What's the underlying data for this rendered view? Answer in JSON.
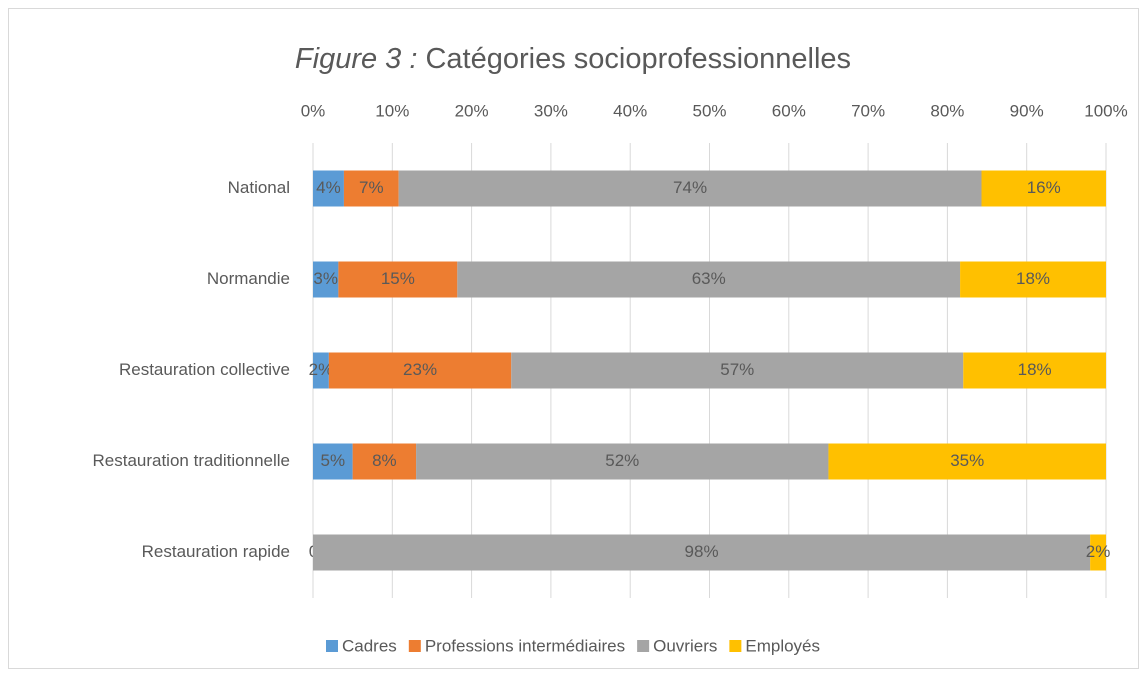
{
  "chart_data": {
    "type": "stacked_barh",
    "title": [
      "Figure 3 : ",
      "Catégories socioprofessionnelles"
    ],
    "categories": [
      "National",
      "Normandie",
      "Restauration collective",
      "Restauration traditionnelle",
      "Restauration rapide"
    ],
    "series": [
      {
        "name": "Cadres",
        "color": "#5b9bd5",
        "values": [
          3.9,
          3.2,
          2,
          5,
          0
        ],
        "value_labels": [
          "4%",
          "3%",
          "2%",
          "5%",
          "0%"
        ]
      },
      {
        "name": "Professions intermédiaires",
        "color": "#ed7d31",
        "values": [
          6.9,
          15,
          23,
          8,
          0
        ],
        "value_labels": [
          "7%",
          "15%",
          "23%",
          "8%",
          null
        ]
      },
      {
        "name": "Ouvriers",
        "color": "#a5a5a5",
        "values": [
          73.5,
          63.4,
          57,
          52,
          98
        ],
        "value_labels": [
          "74%",
          "63%",
          "57%",
          "52%",
          "98%"
        ]
      },
      {
        "name": "Employés",
        "color": "#ffc000",
        "values": [
          15.7,
          18.4,
          18,
          35,
          2
        ],
        "value_labels": [
          "16%",
          "18%",
          "18%",
          "35%",
          "2%"
        ]
      }
    ],
    "xlim": [
      0,
      100
    ],
    "xticks": [
      {
        "value": 0,
        "label": "0%"
      },
      {
        "value": 10,
        "label": "10%"
      },
      {
        "value": 20,
        "label": "20%"
      },
      {
        "value": 30,
        "label": "30%"
      },
      {
        "value": 40,
        "label": "40%"
      },
      {
        "value": 50,
        "label": "50%"
      },
      {
        "value": 60,
        "label": "60%"
      },
      {
        "value": 70,
        "label": "70%"
      },
      {
        "value": 80,
        "label": "80%"
      },
      {
        "value": 90,
        "label": "90%"
      },
      {
        "value": 100,
        "label": "100%"
      }
    ],
    "grid": true,
    "legend": "bottom"
  }
}
